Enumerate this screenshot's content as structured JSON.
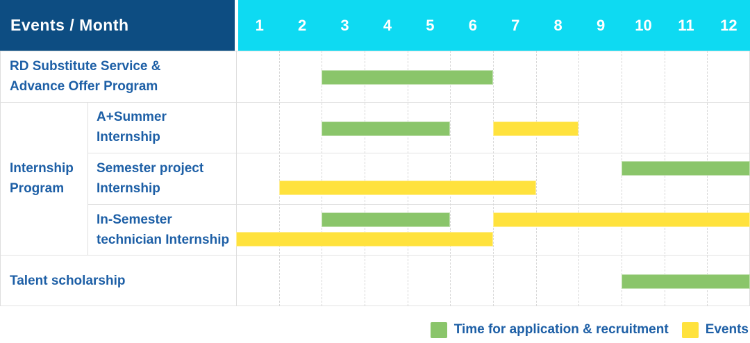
{
  "colors": {
    "header_bg": "#0d4d82",
    "months_bg": "#0edaf2",
    "label_text": "#1d5fa6",
    "application": "#8ac56a",
    "event": "#ffe23d"
  },
  "gantt": {
    "col_header": "Events / Month",
    "months": [
      "1",
      "2",
      "3",
      "4",
      "5",
      "6",
      "7",
      "8",
      "9",
      "10",
      "11",
      "12"
    ],
    "rows": [
      {
        "name": "rd-substitute-service",
        "label_lines": [
          "RD Substitute Service &",
          "Advance Offer Program"
        ],
        "indent": false,
        "bars": [
          {
            "kind": "application",
            "start": 3,
            "end": 7,
            "lane": "mid"
          }
        ]
      },
      {
        "name": "a-plus-summer-internship",
        "label_lines": [
          "A+Summer",
          "Internship"
        ],
        "indent": true,
        "bars": [
          {
            "kind": "application",
            "start": 3,
            "end": 6,
            "lane": "mid"
          },
          {
            "kind": "event",
            "start": 7,
            "end": 9,
            "lane": "mid"
          }
        ]
      },
      {
        "name": "semester-project-internship",
        "label_lines": [
          "Semester project",
          "Internship"
        ],
        "indent": true,
        "bars": [
          {
            "kind": "application",
            "start": 10,
            "end": 13,
            "lane": "top"
          },
          {
            "kind": "event",
            "start": 2,
            "end": 8,
            "lane": "bottom"
          }
        ]
      },
      {
        "name": "in-semester-technician-internship",
        "label_lines": [
          "In-Semester",
          "technician Internship"
        ],
        "indent": true,
        "bars": [
          {
            "kind": "application",
            "start": 3,
            "end": 6,
            "lane": "top"
          },
          {
            "kind": "event",
            "start": 7,
            "end": 13,
            "lane": "top"
          },
          {
            "kind": "event",
            "start": 1,
            "end": 7,
            "lane": "bottom"
          }
        ]
      },
      {
        "name": "talent-scholarship",
        "label_lines": [
          "Talent scholarship"
        ],
        "indent": false,
        "bars": [
          {
            "kind": "application",
            "start": 10,
            "end": 13,
            "lane": "mid"
          }
        ]
      }
    ],
    "group": {
      "name": "internship-program",
      "label_lines": [
        "Internship",
        "Program"
      ],
      "row_start": 1,
      "row_count": 3
    }
  },
  "legend": {
    "items": [
      {
        "name": "application",
        "kind": "application",
        "label": "Time for application & recruitment"
      },
      {
        "name": "event",
        "kind": "event",
        "label": "Events"
      }
    ]
  },
  "chart_data": {
    "type": "bar",
    "subtype": "gantt-timeline",
    "title": "Events / Month",
    "x_axis": {
      "label": "Month",
      "ticks": [
        1,
        2,
        3,
        4,
        5,
        6,
        7,
        8,
        9,
        10,
        11,
        12
      ]
    },
    "legend_entries": [
      "Time for application & recruitment",
      "Events"
    ],
    "series": [
      {
        "name": "RD Substitute Service & Advance Offer Program",
        "group": null,
        "spans": [
          {
            "type": "Time for application & recruitment",
            "start_month": 3,
            "end_month": 6
          }
        ]
      },
      {
        "name": "A+Summer Internship",
        "group": "Internship Program",
        "spans": [
          {
            "type": "Time for application & recruitment",
            "start_month": 3,
            "end_month": 5
          },
          {
            "type": "Events",
            "start_month": 7,
            "end_month": 8
          }
        ]
      },
      {
        "name": "Semester project Internship",
        "group": "Internship Program",
        "spans": [
          {
            "type": "Time for application & recruitment",
            "start_month": 10,
            "end_month": 12
          },
          {
            "type": "Events",
            "start_month": 2,
            "end_month": 7
          }
        ]
      },
      {
        "name": "In-Semester technician Internship",
        "group": "Internship Program",
        "spans": [
          {
            "type": "Time for application & recruitment",
            "start_month": 3,
            "end_month": 5
          },
          {
            "type": "Events",
            "start_month": 7,
            "end_month": 12
          },
          {
            "type": "Events",
            "start_month": 1,
            "end_month": 6
          }
        ]
      },
      {
        "name": "Talent scholarship",
        "group": null,
        "spans": [
          {
            "type": "Time for application & recruitment",
            "start_month": 10,
            "end_month": 12
          }
        ]
      }
    ]
  }
}
